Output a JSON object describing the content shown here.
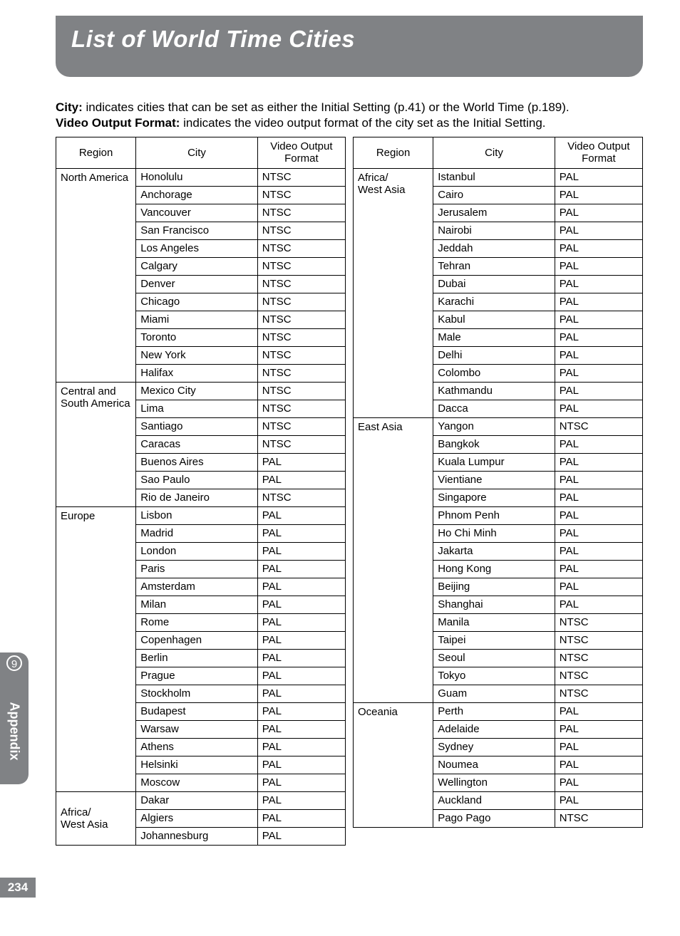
{
  "banner": {
    "title": "List of World Time Cities"
  },
  "intro": {
    "label_city": "City:",
    "text_city": " indicates cities that can be set as either the Initial Setting (p.41) or the World Time (p.189).",
    "label_vof": "Video Output Format:",
    "text_vof": " indicates the video output format of the city set as the Initial Setting."
  },
  "headers": {
    "region": "Region",
    "city": "City",
    "vof_line1": "Video Output",
    "vof_line2": "Format"
  },
  "sidebar": {
    "chapter": "9",
    "title": "Appendix"
  },
  "pagenum": "234",
  "left_table": [
    {
      "region": "North America",
      "rows": [
        [
          "Honolulu",
          "NTSC"
        ],
        [
          "Anchorage",
          "NTSC"
        ],
        [
          "Vancouver",
          "NTSC"
        ],
        [
          "San Francisco",
          "NTSC"
        ],
        [
          "Los Angeles",
          "NTSC"
        ],
        [
          "Calgary",
          "NTSC"
        ],
        [
          "Denver",
          "NTSC"
        ],
        [
          "Chicago",
          "NTSC"
        ],
        [
          "Miami",
          "NTSC"
        ],
        [
          "Toronto",
          "NTSC"
        ],
        [
          "New York",
          "NTSC"
        ],
        [
          "Halifax",
          "NTSC"
        ]
      ]
    },
    {
      "region": "Central and South America",
      "rows": [
        [
          "Mexico City",
          "NTSC"
        ],
        [
          "Lima",
          "NTSC"
        ],
        [
          "Santiago",
          "NTSC"
        ],
        [
          "Caracas",
          "NTSC"
        ],
        [
          "Buenos Aires",
          "PAL"
        ],
        [
          "Sao Paulo",
          "PAL"
        ],
        [
          "Rio de Janeiro",
          "NTSC"
        ]
      ]
    },
    {
      "region": "Europe",
      "rows": [
        [
          "Lisbon",
          "PAL"
        ],
        [
          "Madrid",
          "PAL"
        ],
        [
          "London",
          "PAL"
        ],
        [
          "Paris",
          "PAL"
        ],
        [
          "Amsterdam",
          "PAL"
        ],
        [
          "Milan",
          "PAL"
        ],
        [
          "Rome",
          "PAL"
        ],
        [
          "Copenhagen",
          "PAL"
        ],
        [
          "Berlin",
          "PAL"
        ],
        [
          "Prague",
          "PAL"
        ],
        [
          "Stockholm",
          "PAL"
        ],
        [
          "Budapest",
          "PAL"
        ],
        [
          "Warsaw",
          "PAL"
        ],
        [
          "Athens",
          "PAL"
        ],
        [
          "Helsinki",
          "PAL"
        ],
        [
          "Moscow",
          "PAL"
        ]
      ]
    },
    {
      "region": "Africa/\nWest Asia",
      "rows": [
        [
          "Dakar",
          "PAL"
        ],
        [
          "Algiers",
          "PAL"
        ],
        [
          "Johannesburg",
          "PAL"
        ]
      ]
    }
  ],
  "right_table": [
    {
      "region": "Africa/\nWest Asia",
      "rows": [
        [
          "Istanbul",
          "PAL"
        ],
        [
          "Cairo",
          "PAL"
        ],
        [
          "Jerusalem",
          "PAL"
        ],
        [
          "Nairobi",
          "PAL"
        ],
        [
          "Jeddah",
          "PAL"
        ],
        [
          "Tehran",
          "PAL"
        ],
        [
          "Dubai",
          "PAL"
        ],
        [
          "Karachi",
          "PAL"
        ],
        [
          "Kabul",
          "PAL"
        ],
        [
          "Male",
          "PAL"
        ],
        [
          "Delhi",
          "PAL"
        ],
        [
          "Colombo",
          "PAL"
        ],
        [
          "Kathmandu",
          "PAL"
        ],
        [
          "Dacca",
          "PAL"
        ]
      ]
    },
    {
      "region": "East Asia",
      "rows": [
        [
          "Yangon",
          "NTSC"
        ],
        [
          "Bangkok",
          "PAL"
        ],
        [
          "Kuala Lumpur",
          "PAL"
        ],
        [
          "Vientiane",
          "PAL"
        ],
        [
          "Singapore",
          "PAL"
        ],
        [
          "Phnom Penh",
          "PAL"
        ],
        [
          "Ho Chi Minh",
          "PAL"
        ],
        [
          "Jakarta",
          "PAL"
        ],
        [
          "Hong Kong",
          "PAL"
        ],
        [
          "Beijing",
          "PAL"
        ],
        [
          "Shanghai",
          "PAL"
        ],
        [
          "Manila",
          "NTSC"
        ],
        [
          "Taipei",
          "NTSC"
        ],
        [
          "Seoul",
          "NTSC"
        ],
        [
          "Tokyo",
          "NTSC"
        ],
        [
          "Guam",
          "NTSC"
        ]
      ]
    },
    {
      "region": "Oceania",
      "rows": [
        [
          "Perth",
          "PAL"
        ],
        [
          "Adelaide",
          "PAL"
        ],
        [
          "Sydney",
          "PAL"
        ],
        [
          "Noumea",
          "PAL"
        ],
        [
          "Wellington",
          "PAL"
        ],
        [
          "Auckland",
          "PAL"
        ],
        [
          "Pago Pago",
          "NTSC"
        ]
      ]
    }
  ]
}
